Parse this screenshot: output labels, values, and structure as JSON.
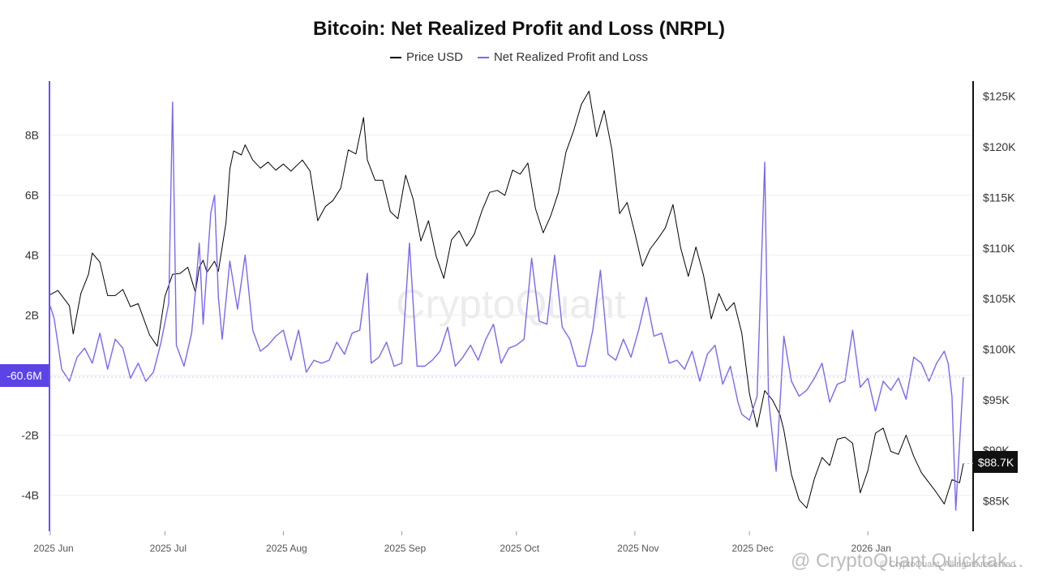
{
  "chart_data": {
    "type": "line",
    "title": "Bitcoin: Net Realized Profit and Loss (NRPL)",
    "legend": [
      "Price USD",
      "Net Realized Profit and Loss"
    ],
    "legend_placement": "top-center",
    "x_tick_labels": [
      "2025 Jun",
      "2025 Jul",
      "2025 Aug",
      "2025 Sep",
      "2025 Oct",
      "2025 Nov",
      "2025 Dec",
      "2026 Jan"
    ],
    "x_range": [
      "2025-06-01",
      "2026-01-26"
    ],
    "left_axis": {
      "tick_labels": [
        "8B",
        "6B",
        "4B",
        "2B",
        "-2B",
        "-4B"
      ],
      "tick_values": [
        8000000000,
        6000000000,
        4000000000,
        2000000000,
        -2000000000,
        -4000000000
      ],
      "range": [
        -5200000000,
        9800000000
      ]
    },
    "right_axis": {
      "tick_labels": [
        "$125K",
        "$120K",
        "$115K",
        "$110K",
        "$105K",
        "$100K",
        "$95K",
        "$90K",
        "$85K"
      ],
      "tick_values": [
        125000,
        120000,
        115000,
        110000,
        105000,
        100000,
        95000,
        90000,
        85000
      ],
      "range": [
        82000,
        126500
      ]
    },
    "current_values": {
      "nrpl_label": "-60.6M",
      "price_label": "$88.7K"
    },
    "grid": true,
    "series": [
      {
        "name": "Price USD",
        "axis": "right",
        "color": "#000000",
        "points": [
          [
            "2025-06-01",
            105400
          ],
          [
            "2025-06-03",
            105800
          ],
          [
            "2025-06-06",
            104300
          ],
          [
            "2025-06-07",
            101500
          ],
          [
            "2025-06-09",
            105500
          ],
          [
            "2025-06-11",
            107400
          ],
          [
            "2025-06-12",
            109500
          ],
          [
            "2025-06-14",
            108600
          ],
          [
            "2025-06-16",
            105300
          ],
          [
            "2025-06-18",
            105300
          ],
          [
            "2025-06-20",
            105900
          ],
          [
            "2025-06-22",
            104200
          ],
          [
            "2025-06-24",
            104500
          ],
          [
            "2025-06-27",
            101400
          ],
          [
            "2025-06-29",
            100300
          ],
          [
            "2025-07-01",
            105200
          ],
          [
            "2025-07-03",
            107400
          ],
          [
            "2025-07-05",
            107500
          ],
          [
            "2025-07-07",
            108100
          ],
          [
            "2025-07-09",
            105600
          ],
          [
            "2025-07-10",
            108100
          ],
          [
            "2025-07-11",
            108800
          ],
          [
            "2025-07-12",
            107600
          ],
          [
            "2025-07-14",
            108700
          ],
          [
            "2025-07-15",
            107700
          ],
          [
            "2025-07-17",
            112500
          ],
          [
            "2025-07-18",
            117800
          ],
          [
            "2025-07-19",
            119600
          ],
          [
            "2025-07-21",
            119200
          ],
          [
            "2025-07-22",
            120200
          ],
          [
            "2025-07-24",
            118700
          ],
          [
            "2025-07-26",
            117900
          ],
          [
            "2025-07-28",
            118500
          ],
          [
            "2025-07-30",
            117700
          ],
          [
            "2025-08-01",
            118300
          ],
          [
            "2025-08-03",
            117600
          ],
          [
            "2025-08-06",
            118700
          ],
          [
            "2025-08-08",
            117600
          ],
          [
            "2025-08-10",
            112700
          ],
          [
            "2025-08-12",
            114100
          ],
          [
            "2025-08-14",
            114700
          ],
          [
            "2025-08-16",
            115900
          ],
          [
            "2025-08-18",
            119700
          ],
          [
            "2025-08-20",
            119300
          ],
          [
            "2025-08-22",
            122900
          ],
          [
            "2025-08-23",
            118700
          ],
          [
            "2025-08-25",
            116700
          ],
          [
            "2025-08-27",
            116700
          ],
          [
            "2025-08-29",
            113600
          ],
          [
            "2025-08-31",
            112900
          ],
          [
            "2025-09-02",
            117200
          ],
          [
            "2025-09-04",
            114800
          ],
          [
            "2025-09-06",
            110700
          ],
          [
            "2025-09-08",
            112700
          ],
          [
            "2025-09-10",
            109200
          ],
          [
            "2025-09-12",
            107000
          ],
          [
            "2025-09-14",
            110800
          ],
          [
            "2025-09-16",
            111700
          ],
          [
            "2025-09-18",
            110200
          ],
          [
            "2025-09-20",
            111400
          ],
          [
            "2025-09-22",
            113700
          ],
          [
            "2025-09-24",
            115500
          ],
          [
            "2025-09-26",
            115700
          ],
          [
            "2025-09-28",
            115200
          ],
          [
            "2025-09-30",
            117700
          ],
          [
            "2025-10-02",
            117300
          ],
          [
            "2025-10-04",
            118400
          ],
          [
            "2025-10-06",
            113900
          ],
          [
            "2025-10-08",
            111500
          ],
          [
            "2025-10-10",
            113200
          ],
          [
            "2025-10-12",
            115500
          ],
          [
            "2025-10-14",
            119500
          ],
          [
            "2025-10-16",
            121600
          ],
          [
            "2025-10-18",
            124200
          ],
          [
            "2025-10-20",
            125500
          ],
          [
            "2025-10-22",
            121000
          ],
          [
            "2025-10-24",
            123600
          ],
          [
            "2025-10-26",
            119700
          ],
          [
            "2025-10-28",
            113400
          ],
          [
            "2025-10-30",
            114500
          ],
          [
            "2025-11-01",
            111500
          ],
          [
            "2025-11-03",
            108200
          ],
          [
            "2025-11-05",
            109900
          ],
          [
            "2025-11-07",
            110900
          ],
          [
            "2025-11-09",
            112000
          ],
          [
            "2025-11-11",
            114300
          ],
          [
            "2025-11-13",
            110000
          ],
          [
            "2025-11-15",
            107200
          ],
          [
            "2025-11-17",
            110100
          ],
          [
            "2025-11-19",
            107300
          ],
          [
            "2025-11-21",
            103000
          ],
          [
            "2025-11-23",
            105500
          ],
          [
            "2025-11-25",
            103800
          ],
          [
            "2025-11-27",
            104600
          ],
          [
            "2025-11-29",
            101600
          ],
          [
            "2025-12-01",
            95600
          ],
          [
            "2025-12-03",
            92300
          ],
          [
            "2025-12-05",
            95900
          ],
          [
            "2025-12-07",
            95000
          ],
          [
            "2025-12-09",
            93500
          ],
          [
            "2025-12-10",
            92000
          ],
          [
            "2025-12-12",
            87600
          ],
          [
            "2025-12-14",
            85100
          ],
          [
            "2025-12-16",
            84300
          ],
          [
            "2025-12-18",
            87200
          ],
          [
            "2025-12-20",
            89300
          ],
          [
            "2025-12-22",
            88500
          ],
          [
            "2025-12-24",
            91100
          ],
          [
            "2025-12-26",
            91300
          ],
          [
            "2025-12-28",
            90700
          ],
          [
            "2025-12-30",
            85800
          ],
          [
            "2026-01-01",
            88000
          ],
          [
            "2026-01-03",
            91700
          ],
          [
            "2026-01-05",
            92200
          ],
          [
            "2026-01-07",
            89900
          ],
          [
            "2026-01-09",
            89600
          ],
          [
            "2026-01-11",
            91500
          ],
          [
            "2026-01-13",
            89400
          ],
          [
            "2026-01-15",
            87800
          ],
          [
            "2026-01-17",
            86800
          ],
          [
            "2026-01-19",
            85800
          ],
          [
            "2026-01-21",
            84700
          ],
          [
            "2026-01-23",
            87100
          ],
          [
            "2026-01-25",
            86800
          ],
          [
            "2026-01-26",
            88700
          ]
        ]
      },
      {
        "name": "Net Realized Profit and Loss",
        "axis": "left",
        "color": "#7b68ee",
        "points": [
          [
            "2025-06-01",
            2300000000
          ],
          [
            "2025-06-02",
            1900000000
          ],
          [
            "2025-06-04",
            200000000
          ],
          [
            "2025-06-06",
            -200000000
          ],
          [
            "2025-06-08",
            600000000
          ],
          [
            "2025-06-10",
            900000000
          ],
          [
            "2025-06-12",
            400000000
          ],
          [
            "2025-06-14",
            1400000000
          ],
          [
            "2025-06-16",
            200000000
          ],
          [
            "2025-06-18",
            1200000000
          ],
          [
            "2025-06-20",
            900000000
          ],
          [
            "2025-06-22",
            -100000000
          ],
          [
            "2025-06-24",
            400000000
          ],
          [
            "2025-06-26",
            -200000000
          ],
          [
            "2025-06-28",
            100000000
          ],
          [
            "2025-06-30",
            1100000000
          ],
          [
            "2025-07-02",
            2400000000
          ],
          [
            "2025-07-03",
            9100000000
          ],
          [
            "2025-07-04",
            1000000000
          ],
          [
            "2025-07-06",
            300000000
          ],
          [
            "2025-07-08",
            1400000000
          ],
          [
            "2025-07-09",
            2800000000
          ],
          [
            "2025-07-10",
            4400000000
          ],
          [
            "2025-07-11",
            1700000000
          ],
          [
            "2025-07-13",
            5400000000
          ],
          [
            "2025-07-14",
            6000000000
          ],
          [
            "2025-07-15",
            2600000000
          ],
          [
            "2025-07-16",
            1200000000
          ],
          [
            "2025-07-18",
            3800000000
          ],
          [
            "2025-07-20",
            2200000000
          ],
          [
            "2025-07-22",
            4000000000
          ],
          [
            "2025-07-24",
            1500000000
          ],
          [
            "2025-07-26",
            800000000
          ],
          [
            "2025-07-28",
            1000000000
          ],
          [
            "2025-07-30",
            1300000000
          ],
          [
            "2025-08-01",
            1500000000
          ],
          [
            "2025-08-03",
            500000000
          ],
          [
            "2025-08-05",
            1500000000
          ],
          [
            "2025-08-07",
            100000000
          ],
          [
            "2025-08-09",
            500000000
          ],
          [
            "2025-08-11",
            400000000
          ],
          [
            "2025-08-13",
            500000000
          ],
          [
            "2025-08-15",
            1100000000
          ],
          [
            "2025-08-17",
            700000000
          ],
          [
            "2025-08-19",
            1400000000
          ],
          [
            "2025-08-21",
            1500000000
          ],
          [
            "2025-08-23",
            3400000000
          ],
          [
            "2025-08-24",
            400000000
          ],
          [
            "2025-08-26",
            600000000
          ],
          [
            "2025-08-28",
            1100000000
          ],
          [
            "2025-08-30",
            300000000
          ],
          [
            "2025-09-01",
            400000000
          ],
          [
            "2025-09-03",
            4400000000
          ],
          [
            "2025-09-05",
            300000000
          ],
          [
            "2025-09-07",
            300000000
          ],
          [
            "2025-09-09",
            500000000
          ],
          [
            "2025-09-11",
            800000000
          ],
          [
            "2025-09-13",
            1600000000
          ],
          [
            "2025-09-15",
            300000000
          ],
          [
            "2025-09-17",
            600000000
          ],
          [
            "2025-09-19",
            1000000000
          ],
          [
            "2025-09-21",
            500000000
          ],
          [
            "2025-09-23",
            1200000000
          ],
          [
            "2025-09-25",
            1700000000
          ],
          [
            "2025-09-27",
            400000000
          ],
          [
            "2025-09-29",
            900000000
          ],
          [
            "2025-10-01",
            1000000000
          ],
          [
            "2025-10-03",
            1200000000
          ],
          [
            "2025-10-05",
            3900000000
          ],
          [
            "2025-10-07",
            1800000000
          ],
          [
            "2025-10-09",
            1700000000
          ],
          [
            "2025-10-11",
            4000000000
          ],
          [
            "2025-10-13",
            1600000000
          ],
          [
            "2025-10-15",
            1200000000
          ],
          [
            "2025-10-17",
            300000000
          ],
          [
            "2025-10-19",
            300000000
          ],
          [
            "2025-10-21",
            1500000000
          ],
          [
            "2025-10-23",
            3500000000
          ],
          [
            "2025-10-25",
            700000000
          ],
          [
            "2025-10-27",
            500000000
          ],
          [
            "2025-10-29",
            1200000000
          ],
          [
            "2025-10-31",
            600000000
          ],
          [
            "2025-11-02",
            1500000000
          ],
          [
            "2025-11-04",
            2600000000
          ],
          [
            "2025-11-06",
            1300000000
          ],
          [
            "2025-11-08",
            1400000000
          ],
          [
            "2025-11-10",
            400000000
          ],
          [
            "2025-11-12",
            500000000
          ],
          [
            "2025-11-14",
            200000000
          ],
          [
            "2025-11-16",
            800000000
          ],
          [
            "2025-11-18",
            -200000000
          ],
          [
            "2025-11-20",
            700000000
          ],
          [
            "2025-11-22",
            1000000000
          ],
          [
            "2025-11-24",
            -300000000
          ],
          [
            "2025-11-26",
            300000000
          ],
          [
            "2025-11-28",
            -900000000
          ],
          [
            "2025-11-29",
            -1300000000
          ],
          [
            "2025-12-01",
            -1500000000
          ],
          [
            "2025-12-03",
            -700000000
          ],
          [
            "2025-12-05",
            7100000000
          ],
          [
            "2025-12-06",
            -800000000
          ],
          [
            "2025-12-08",
            -3200000000
          ],
          [
            "2025-12-10",
            1300000000
          ],
          [
            "2025-12-12",
            -200000000
          ],
          [
            "2025-12-14",
            -700000000
          ],
          [
            "2025-12-16",
            -500000000
          ],
          [
            "2025-12-18",
            -100000000
          ],
          [
            "2025-12-20",
            400000000
          ],
          [
            "2025-12-22",
            -900000000
          ],
          [
            "2025-12-24",
            -300000000
          ],
          [
            "2025-12-26",
            -200000000
          ],
          [
            "2025-12-28",
            1500000000
          ],
          [
            "2025-12-30",
            -400000000
          ],
          [
            "2026-01-01",
            -100000000
          ],
          [
            "2026-01-03",
            -1200000000
          ],
          [
            "2026-01-05",
            -200000000
          ],
          [
            "2026-01-07",
            -500000000
          ],
          [
            "2026-01-09",
            -100000000
          ],
          [
            "2026-01-11",
            -800000000
          ],
          [
            "2026-01-13",
            600000000
          ],
          [
            "2026-01-15",
            400000000
          ],
          [
            "2026-01-17",
            -200000000
          ],
          [
            "2026-01-19",
            400000000
          ],
          [
            "2026-01-21",
            800000000
          ],
          [
            "2026-01-22",
            400000000
          ],
          [
            "2026-01-23",
            -700000000
          ],
          [
            "2026-01-24",
            -4500000000
          ],
          [
            "2026-01-26",
            -60600000
          ]
        ]
      }
    ]
  },
  "watermark": "CryptoQuant",
  "footer": {
    "watermark": "@ CryptoQuant Quicktak...",
    "credit": "© CryptoQuant. All rights reserved"
  }
}
